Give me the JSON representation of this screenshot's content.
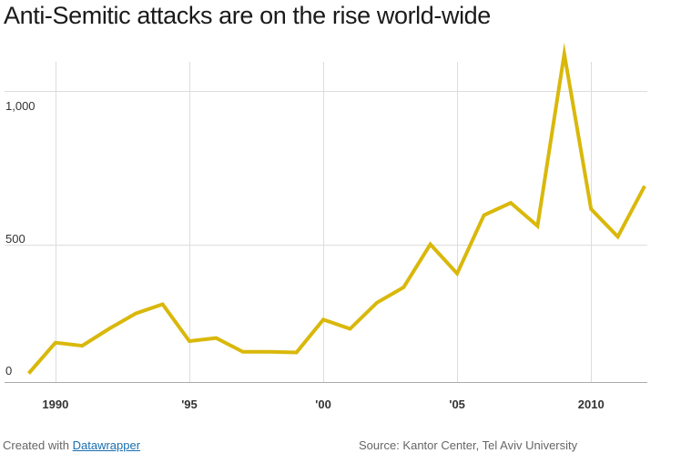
{
  "header": {
    "title": "Anti-Semitic attacks are on the rise world-wide"
  },
  "footer": {
    "created_with": "Created with",
    "link_text": "Datawrapper",
    "source": "Source: Kantor Center, Tel Aviv University"
  },
  "colors": {
    "line": "#d9b80b",
    "grid": "#dddddd",
    "axis": "#aaaaaa",
    "tick_label": "#333333",
    "link": "#1a6fb0"
  },
  "chart_data": {
    "type": "line",
    "title": "Anti-Semitic attacks are on the rise world-wide",
    "xlabel": "",
    "ylabel": "",
    "x": [
      1989,
      1990,
      1991,
      1992,
      1993,
      1994,
      1995,
      1996,
      1997,
      1998,
      1999,
      2000,
      2001,
      2002,
      2003,
      2004,
      2005,
      2006,
      2007,
      2008,
      2009,
      2010,
      2011,
      2012
    ],
    "series": [
      {
        "values": [
          80,
          180,
          170,
          225,
          275,
          305,
          185,
          195,
          150,
          150,
          148,
          255,
          225,
          310,
          360,
          500,
          405,
          595,
          635,
          560,
          1120,
          615,
          525,
          690
        ]
      }
    ],
    "xlim": [
      1988.1,
      2012.1
    ],
    "ylim": [
      -40,
      1100
    ],
    "x_ticks": [
      {
        "value": 1990,
        "label": "1990"
      },
      {
        "value": 1995,
        "label": "'95"
      },
      {
        "value": 2000,
        "label": "'00"
      },
      {
        "value": 2005,
        "label": "'05"
      },
      {
        "value": 2010,
        "label": "2010"
      }
    ],
    "y_ticks": [
      {
        "value": 0,
        "label": "0"
      },
      {
        "value": 500,
        "label": "500"
      },
      {
        "value": 1000,
        "label": "1,000"
      }
    ],
    "grid": true,
    "legend": "none"
  }
}
